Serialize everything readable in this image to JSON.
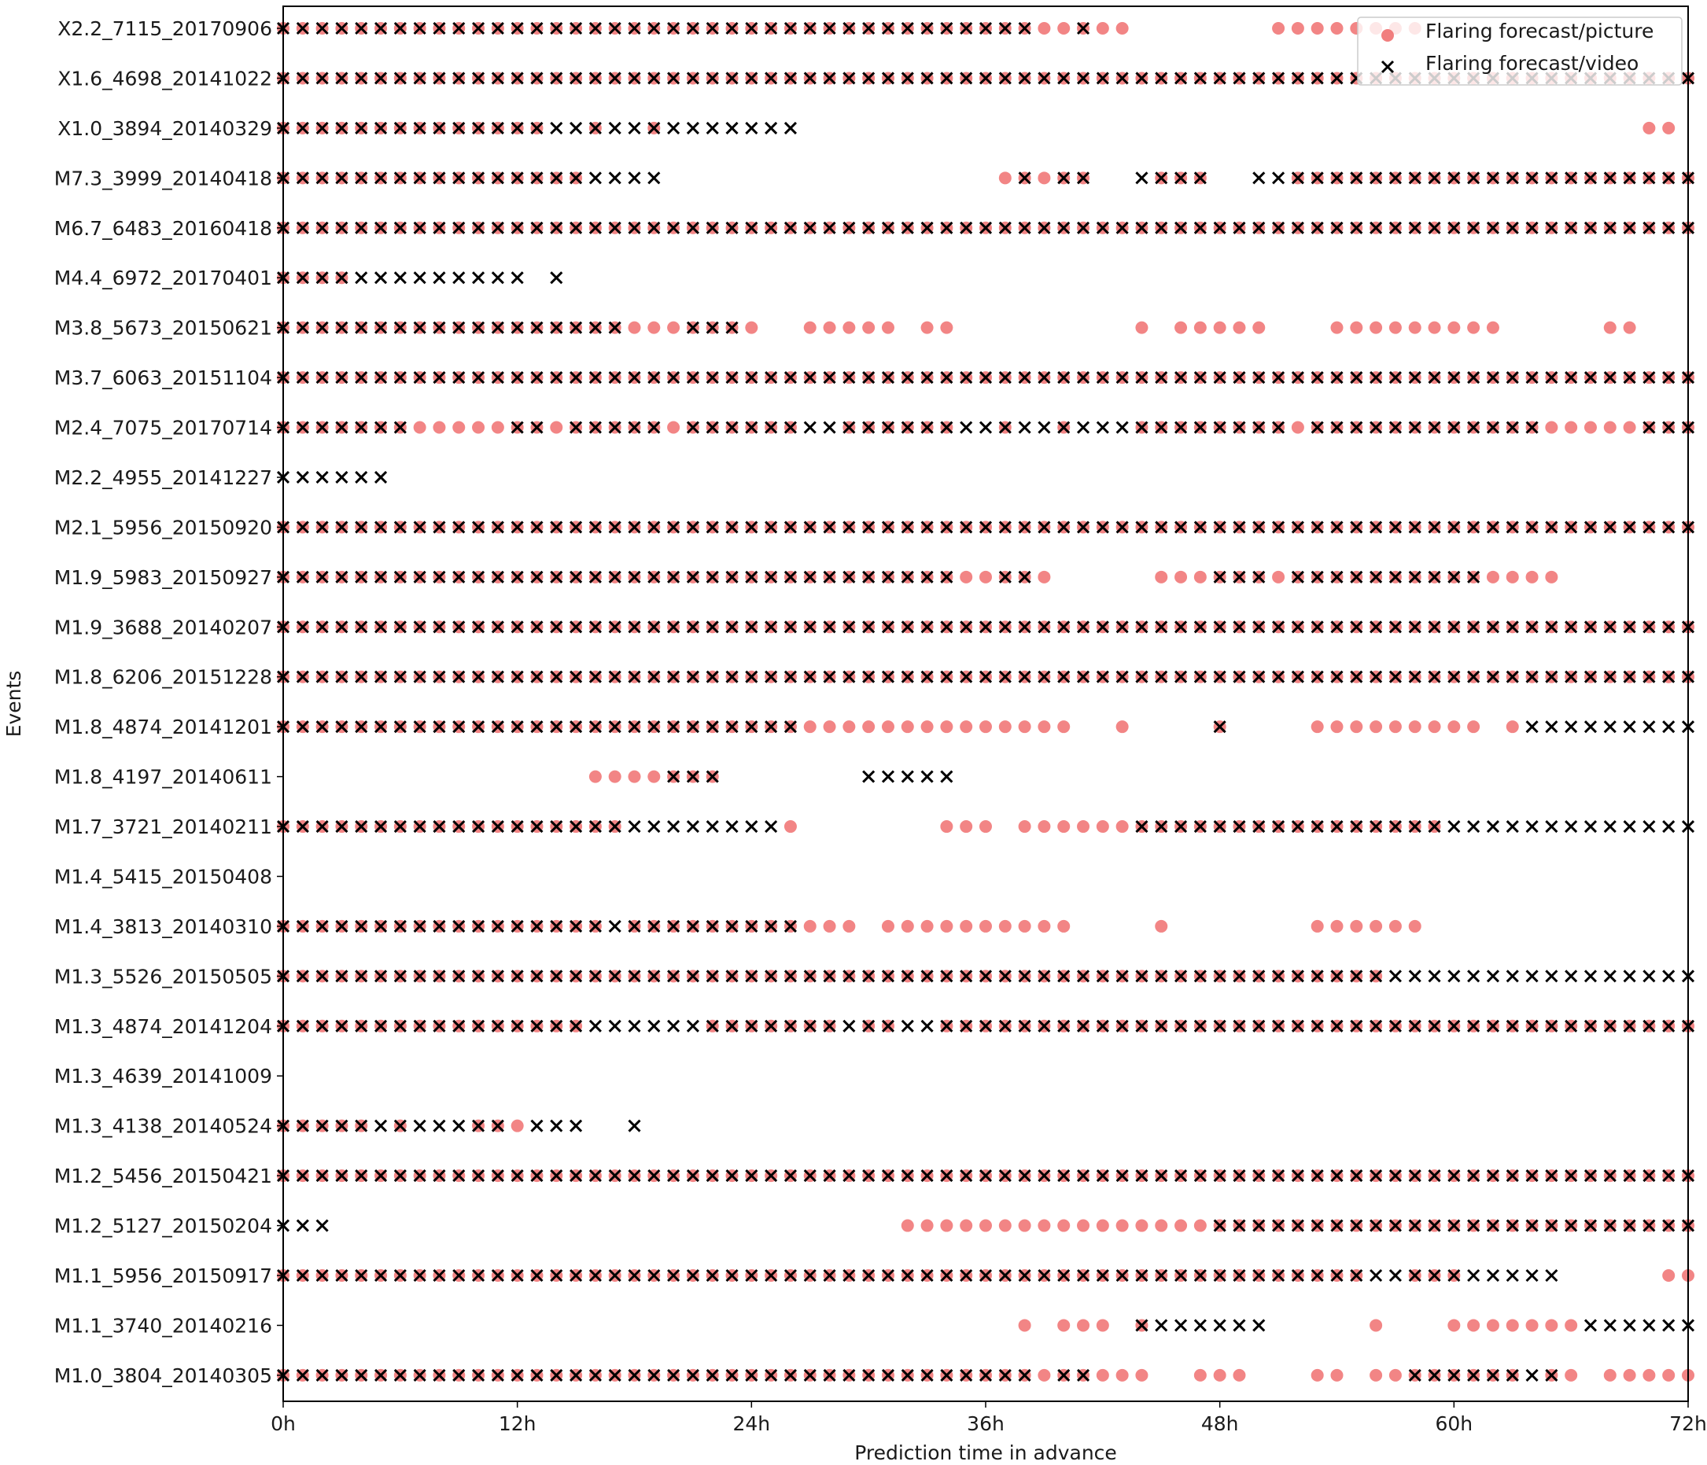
{
  "chart_data": {
    "type": "scatter",
    "title": "",
    "xlabel": "Prediction time in advance",
    "ylabel": "Events",
    "x_range": [
      0,
      72
    ],
    "x_unit": "h",
    "x_step": 1,
    "x_ticks": [
      "0h",
      "12h",
      "24h",
      "36h",
      "48h",
      "60h",
      "72h"
    ],
    "x_tick_values": [
      0,
      12,
      24,
      36,
      48,
      60,
      72
    ],
    "grid": false,
    "legend_position": "upper right",
    "legend": [
      {
        "name": "Flaring forecast/picture",
        "marker": "circle",
        "color": "#f07070"
      },
      {
        "name": "Flaring forecast/video",
        "marker": "x",
        "color": "#000000"
      }
    ],
    "encoding_note": "Each pattern string has 73 chars for hours 0..72: B = both picture and video, C = picture only, X = video only, . = none",
    "events": [
      {
        "label": "X2.2_7115_20170906",
        "pattern": "BBBBBBBBBBBBBBBBBBBBBBBBBBBBBBBBBBBBBBBCCBCC.......CCCCCCCC.............."
      },
      {
        "label": "X1.6_4698_20141022",
        "pattern": "BBBBBBBBBBBBBBBBBBBBBBBBBBBBBBBBBBBBBBBBBBBBBBBBBBBBBBBBBBBBBBBBBBBBBBBBB"
      },
      {
        "label": "X1.0_3894_20140329",
        "pattern": "BBBBBBBBBBBBBBXXBXXBXXXXXXX...........................................CC."
      },
      {
        "label": "M7.3_3999_20140418",
        "pattern": "BBBBBBBBBBBBBBBBXXXX.................CBCBB..XBBB..XXBBBBBBBBBBBBBBBBBBBBB"
      },
      {
        "label": "M6.7_6483_20160418",
        "pattern": "BBBBBBBBBBBBBBBBBBBBBBBBBBBBBBBBBBBBBBBBBBBBBBBBBBBBBBBBBBBBBBBBBBBBBBBBB"
      },
      {
        "label": "M4.4_6972_20170401",
        "pattern": "BBBBXXXXXXXXX.X.........................................................."
      },
      {
        "label": "M3.8_5673_20150621",
        "pattern": "BBBBBBBBBBBBBBBBBBCCCBBBC..CCCCC.CC.........C.CCCCC...CCCCCCCCC.....CC..."
      },
      {
        "label": "M3.7_6063_20151104",
        "pattern": "BBBBBBBBBBBBBBBBBBBBBBBBBBBBBBBBBBBBBBBBBBBBBBBBBBBBBBBBBBBBBBBBBBBBBBBBB"
      },
      {
        "label": "M2.4_7075_20170714",
        "pattern": "BBBBBBBCCCCCBBCBBBBBCBBBBBBXXBBBBBBXXBXXBXXXBBBBBBBBCBBBBBBBBBBBBCCCCCBBB"
      },
      {
        "label": "M2.2_4955_20141227",
        "pattern": "XXXXXX..................................................................."
      },
      {
        "label": "M2.1_5956_20150920",
        "pattern": "BBBBBBBBBBBBBBBBBBBBBBBBBBBBBBBBBBBBBBBBBBBBBBBBBBBBBBBBBBBBBBBBBBBBBBBBB"
      },
      {
        "label": "M1.9_5983_20150927",
        "pattern": "BBBBBBBBBBBBBBBBBBBBBBBBBBBBBBBBBBBCCBBC.....CCCBBBCBBBBBBBBBBCCCC......."
      },
      {
        "label": "M1.9_3688_20140207",
        "pattern": "BBBBBBBBBBBBBBBBBBBBBBBBBBBBBBBBBBBBBBBBBBBBBBBBBBBBBBBBBBBBBBBBBBBBBBBBB"
      },
      {
        "label": "M1.8_6206_20151228",
        "pattern": "BBBBBBBBBBBBBBBBBBBBBBBBBBBBBBBBBBBBBBBBBBBBBBBBBBBBBBBBBBBBBBBBBBBBBBBBB"
      },
      {
        "label": "M1.8_4874_20141201",
        "pattern": "BBBBBBBBBBBBBBBBBBBBBBBBBBBCCCCCCCCCCCCCC..C....B....CCCCCCCCC.CXXXXXXXXX"
      },
      {
        "label": "M1.8_4197_20140611",
        "pattern": "................CCCCBBB.......XXXXX......................................"
      },
      {
        "label": "M1.7_3721_20140211",
        "pattern": "BBBBBBBBBBBBBBBBBBXXXXXXXXC.......CCC.CCCCCCBBBBBBBBBBBBBBBBXXXXXXXXXXXXX"
      },
      {
        "label": "M1.4_5415_20150408",
        "pattern": "........................................................................."
      },
      {
        "label": "M1.4_3813_20140310",
        "pattern": "BBBBBBBBBBBBBBBBBXBBBBBBBBBCCC.CCCCCCCCCC....C.......CCCCCC.............."
      },
      {
        "label": "M1.3_5526_20150505",
        "pattern": "BBBBBBBBBBBBBBBBBBBBBBBBBBBBBBBBBBBBBBBBBBBBBBBBBBBBBBBBBXXXXXXXXXXXXXXXX"
      },
      {
        "label": "M1.3_4874_20141204",
        "pattern": "BBBBBBBBBBBBBBBBXXXXXXBBBBBBBXBBXXBBBBBBBBBBBBBBBBBBBBBBBBBBBBBBBBBBBBBBB"
      },
      {
        "label": "M1.3_4639_20141009",
        "pattern": "........................................................................."
      },
      {
        "label": "M1.3_4138_20140524",
        "pattern": "BBBBBXBXXXBBCXXX..X......................................................"
      },
      {
        "label": "M1.2_5456_20150421",
        "pattern": "BBBBBBBBBBBBBBBBBBBBBBBBBBBBBBBBBBBBBBBBBBBBBBBBBBBBBBBBBBBBBBBBBBBBBBBBB"
      },
      {
        "label": "M1.2_5127_20150204",
        "pattern": "XXX.............................CCCCCCCCCCCCCCCCBBBBBBBBBBBBBBBBBBBBBBBBB"
      },
      {
        "label": "M1.1_5956_20150917",
        "pattern": "BBBBBBBBBBBBBBBBBBBBBBBBBBBBBBBBBBBBBBBBBBBBBBBBBBBBBBBBXXBBBXXXXX.....CC"
      },
      {
        "label": "M1.1_3740_20140216",
        "pattern": "......................................C.CCC.BXXXXXX.....C...CCCCCCCXXXXXX"
      },
      {
        "label": "M1.0_3804_20140305",
        "pattern": "BBBBBBBBBBBBBBBBBBBBBBBBBBBBBBBBBBBBBBBCBBCCC..CCC...CC.CCBBBBBBXBC.CCCCC"
      }
    ]
  }
}
